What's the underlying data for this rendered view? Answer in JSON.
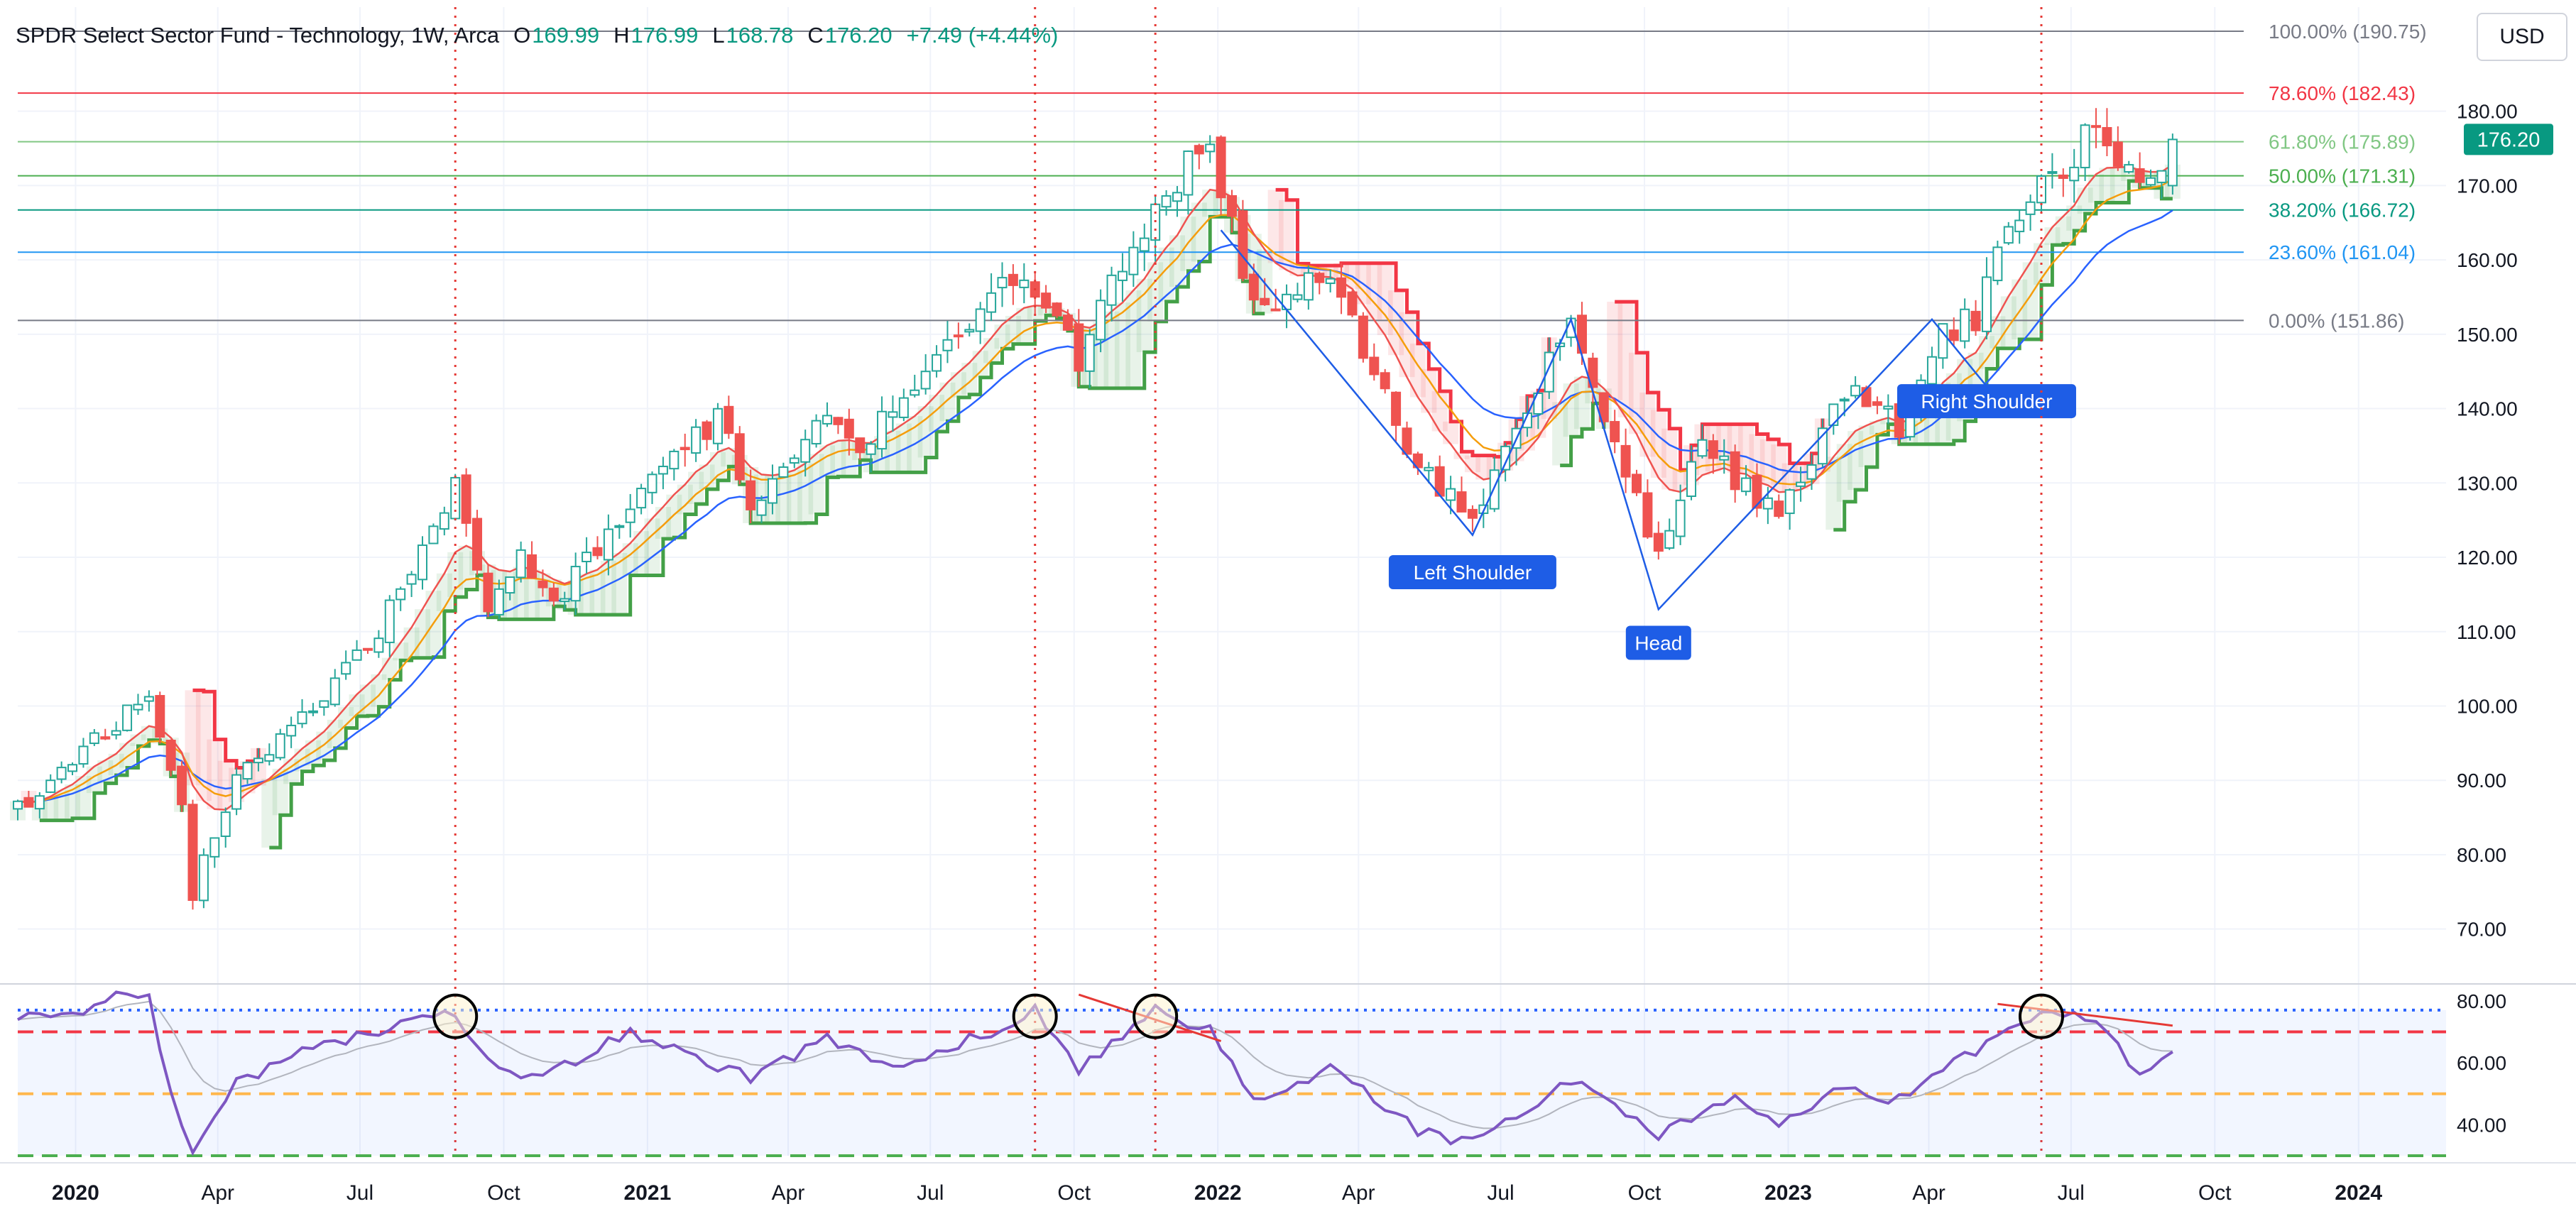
{
  "header": {
    "symbol_title": "SPDR Select Sector Fund - Technology, 1W, Arca",
    "ohlc": [
      {
        "k": "O",
        "v": "169.99"
      },
      {
        "k": "H",
        "v": "176.99"
      },
      {
        "k": "L",
        "v": "168.78"
      },
      {
        "k": "C",
        "v": "176.20"
      }
    ],
    "change": "+7.49 (+4.44%)"
  },
  "currency_button": "USD",
  "last_price": "176.20",
  "colors": {
    "up": "#26a69a",
    "down": "#ef5350",
    "accent": "#089981",
    "ema_fast": "#ef5350",
    "ema_mid": "#f59d0c",
    "ema_slow": "#2962ff",
    "cloud_bull": "#43a047",
    "cloud_bear": "#f23645",
    "rsi": "#7e57c2",
    "annotation": "#1e5de6",
    "vline": "#e53935"
  },
  "chart_data": [
    {
      "type": "candlestick",
      "title": "SPDR Select Sector Fund - Technology, 1W, Arca",
      "timeframe": "1W",
      "x_type": "time",
      "xlim": [
        "2019-11-25",
        "2024-02-26"
      ],
      "ylim": [
        63,
        194
      ],
      "grid": true,
      "y_ticks": [
        "70.00",
        "80.00",
        "90.00",
        "100.00",
        "110.00",
        "120.00",
        "130.00",
        "140.00",
        "150.00",
        "160.00",
        "170.00",
        "180.00"
      ],
      "x_ticks": [
        {
          "label": "2020",
          "date": "2020-01-01",
          "bold": true
        },
        {
          "label": "Apr",
          "date": "2020-04-01"
        },
        {
          "label": "Jul",
          "date": "2020-07-01"
        },
        {
          "label": "Oct",
          "date": "2020-10-01"
        },
        {
          "label": "2021",
          "date": "2021-01-01",
          "bold": true
        },
        {
          "label": "Apr",
          "date": "2021-04-01"
        },
        {
          "label": "Jul",
          "date": "2021-07-01"
        },
        {
          "label": "Oct",
          "date": "2021-10-01"
        },
        {
          "label": "2022",
          "date": "2022-01-01",
          "bold": true
        },
        {
          "label": "Apr",
          "date": "2022-04-01"
        },
        {
          "label": "Jul",
          "date": "2022-07-01"
        },
        {
          "label": "Oct",
          "date": "2022-10-01"
        },
        {
          "label": "2023",
          "date": "2023-01-01",
          "bold": true
        },
        {
          "label": "Apr",
          "date": "2023-04-01"
        },
        {
          "label": "Jul",
          "date": "2023-07-01"
        },
        {
          "label": "Oct",
          "date": "2023-10-01"
        },
        {
          "label": "2024",
          "date": "2024-01-01",
          "bold": true
        }
      ],
      "close_anchors": [
        [
          "2019-11-25",
          86
        ],
        [
          "2019-12-30",
          93
        ],
        [
          "2020-02-17",
          101
        ],
        [
          "2020-03-09",
          87
        ],
        [
          "2020-03-16",
          74
        ],
        [
          "2020-03-23",
          80
        ],
        [
          "2020-04-13",
          90
        ],
        [
          "2020-05-25",
          98
        ],
        [
          "2020-07-06",
          108
        ],
        [
          "2020-08-31",
          129
        ],
        [
          "2020-09-21",
          113
        ],
        [
          "2020-10-12",
          120
        ],
        [
          "2020-11-02",
          114
        ],
        [
          "2020-12-28",
          129
        ],
        [
          "2021-02-15",
          139
        ],
        [
          "2021-03-08",
          127
        ],
        [
          "2021-04-26",
          141
        ],
        [
          "2021-05-17",
          134
        ],
        [
          "2021-07-05",
          148
        ],
        [
          "2021-08-30",
          158
        ],
        [
          "2021-10-04",
          147
        ],
        [
          "2021-11-22",
          168
        ],
        [
          "2021-12-27",
          176
        ],
        [
          "2022-01-10",
          164
        ],
        [
          "2022-01-24",
          154
        ],
        [
          "2022-03-14",
          158
        ],
        [
          "2022-05-09",
          132
        ],
        [
          "2022-06-13",
          125
        ],
        [
          "2022-08-15",
          152
        ],
        [
          "2022-09-12",
          135
        ],
        [
          "2022-10-10",
          120
        ],
        [
          "2022-11-07",
          135
        ],
        [
          "2022-12-26",
          125
        ],
        [
          "2023-02-06",
          142
        ],
        [
          "2023-03-13",
          138
        ],
        [
          "2023-04-10",
          150
        ],
        [
          "2023-05-01",
          152
        ],
        [
          "2023-05-29",
          167
        ],
        [
          "2023-07-17",
          178
        ],
        [
          "2023-08-14",
          170
        ],
        [
          "2023-09-04",
          176.2
        ]
      ],
      "fibonacci_levels": [
        {
          "label": "100.00% (190.75)",
          "value": 190.75,
          "color": "#787b86"
        },
        {
          "label": "78.60% (182.43)",
          "value": 182.43,
          "color": "#f23645"
        },
        {
          "label": "61.80% (175.89)",
          "value": 175.89,
          "color": "#81c784"
        },
        {
          "label": "50.00% (171.31)",
          "value": 171.31,
          "color": "#4caf50"
        },
        {
          "label": "38.20% (166.72)",
          "value": 166.72,
          "color": "#089981"
        },
        {
          "label": "23.60% (161.04)",
          "value": 161.04,
          "color": "#2196f3"
        },
        {
          "label": "0.00% (151.86)",
          "value": 151.86,
          "color": "#787b86"
        }
      ],
      "pattern_line": [
        [
          "2022-01-03",
          164
        ],
        [
          "2022-06-13",
          123
        ],
        [
          "2022-08-15",
          152
        ],
        [
          "2022-10-10",
          113
        ],
        [
          "2023-04-03",
          152
        ],
        [
          "2023-05-08",
          143
        ]
      ],
      "annotations": [
        {
          "label": "Left Shoulder",
          "date": "2022-06-13",
          "value": 118
        },
        {
          "label": "Head",
          "date": "2022-10-10",
          "value": 108.5
        },
        {
          "label": "Right Shoulder",
          "date": "2023-05-08",
          "value": 141
        }
      ],
      "vertical_markers": [
        "2020-08-31",
        "2021-09-06",
        "2021-11-22",
        "2023-06-12"
      ]
    },
    {
      "type": "line",
      "title": "",
      "x_type": "time",
      "ylim": [
        30,
        85
      ],
      "y_ticks": [
        "40.00",
        "60.00",
        "80.00"
      ],
      "levels": [
        {
          "value": 77,
          "color": "#2962ff",
          "style": "dotted"
        },
        {
          "value": 70,
          "color": "#f23645",
          "style": "dashed"
        },
        {
          "value": 50,
          "color": "#ffb74d",
          "style": "dashed"
        },
        {
          "value": 30,
          "color": "#4caf50",
          "style": "dashed"
        }
      ],
      "rsi_anchors": [
        [
          "2019-11-25",
          74
        ],
        [
          "2020-01-13",
          78
        ],
        [
          "2020-02-03",
          83
        ],
        [
          "2020-02-17",
          80
        ],
        [
          "2020-03-02",
          50
        ],
        [
          "2020-03-16",
          32
        ],
        [
          "2020-04-13",
          53
        ],
        [
          "2020-06-01",
          65
        ],
        [
          "2020-08-31",
          76
        ],
        [
          "2020-09-21",
          60
        ],
        [
          "2020-10-26",
          55
        ],
        [
          "2020-12-21",
          70
        ],
        [
          "2021-03-08",
          55
        ],
        [
          "2021-04-26",
          68
        ],
        [
          "2021-06-07",
          58
        ],
        [
          "2021-08-23",
          73
        ],
        [
          "2021-09-06",
          77
        ],
        [
          "2021-10-04",
          58
        ],
        [
          "2021-11-22",
          78
        ],
        [
          "2021-12-27",
          70
        ],
        [
          "2022-01-24",
          48
        ],
        [
          "2022-03-14",
          58
        ],
        [
          "2022-05-09",
          38
        ],
        [
          "2022-06-13",
          34
        ],
        [
          "2022-08-15",
          55
        ],
        [
          "2022-09-12",
          45
        ],
        [
          "2022-10-10",
          36
        ],
        [
          "2022-11-28",
          50
        ],
        [
          "2022-12-26",
          40
        ],
        [
          "2023-02-06",
          52
        ],
        [
          "2023-03-13",
          48
        ],
        [
          "2023-05-01",
          64
        ],
        [
          "2023-06-12",
          77
        ],
        [
          "2023-07-17",
          73
        ],
        [
          "2023-08-14",
          56
        ],
        [
          "2023-09-04",
          64
        ]
      ],
      "circles": [
        "2020-08-31",
        "2021-09-06",
        "2021-11-22",
        "2023-06-12"
      ],
      "divergence_lines": [
        [
          [
            "2021-10-04",
            82
          ],
          [
            "2022-01-03",
            67
          ]
        ],
        [
          [
            "2023-05-15",
            79
          ],
          [
            "2023-09-04",
            72
          ]
        ]
      ]
    }
  ]
}
